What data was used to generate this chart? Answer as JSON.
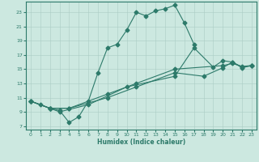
{
  "background_color": "#cce8e0",
  "grid_color": "#aaccc4",
  "line_color": "#2d7a6a",
  "xlim": [
    -0.5,
    23.5
  ],
  "ylim": [
    6.5,
    24.5
  ],
  "xticks": [
    0,
    1,
    2,
    3,
    4,
    5,
    6,
    7,
    8,
    9,
    10,
    11,
    12,
    13,
    14,
    15,
    16,
    17,
    18,
    19,
    20,
    21,
    22,
    23
  ],
  "yticks": [
    7,
    9,
    11,
    13,
    15,
    17,
    19,
    21,
    23
  ],
  "xlabel": "Humidex (Indice chaleur)",
  "line1_x": [
    0,
    1,
    2,
    3,
    4,
    5,
    6,
    7,
    8,
    9,
    10,
    11,
    12,
    13,
    14,
    15,
    16,
    17
  ],
  "line1_y": [
    10.5,
    10.0,
    9.5,
    9.2,
    7.5,
    8.3,
    10.5,
    14.5,
    18.0,
    18.5,
    20.5,
    23.0,
    22.5,
    23.2,
    23.5,
    24.0,
    21.5,
    18.5
  ],
  "line2_x": [
    0,
    2,
    3,
    6,
    10,
    15,
    17,
    19,
    20,
    21,
    22,
    23
  ],
  "line2_y": [
    10.5,
    9.5,
    9.0,
    10.0,
    12.5,
    14.0,
    18.0,
    15.3,
    16.2,
    16.0,
    15.2,
    15.5
  ],
  "line3_x": [
    0,
    2,
    4,
    8,
    11,
    15,
    18,
    20,
    21,
    22,
    23
  ],
  "line3_y": [
    10.5,
    9.5,
    9.5,
    11.0,
    12.5,
    14.5,
    14.0,
    15.2,
    16.0,
    15.3,
    15.5
  ],
  "line4_x": [
    0,
    2,
    4,
    8,
    11,
    15,
    20,
    21,
    22,
    23
  ],
  "line4_y": [
    10.5,
    9.5,
    9.5,
    11.5,
    13.0,
    15.0,
    15.5,
    15.8,
    15.4,
    15.5
  ]
}
